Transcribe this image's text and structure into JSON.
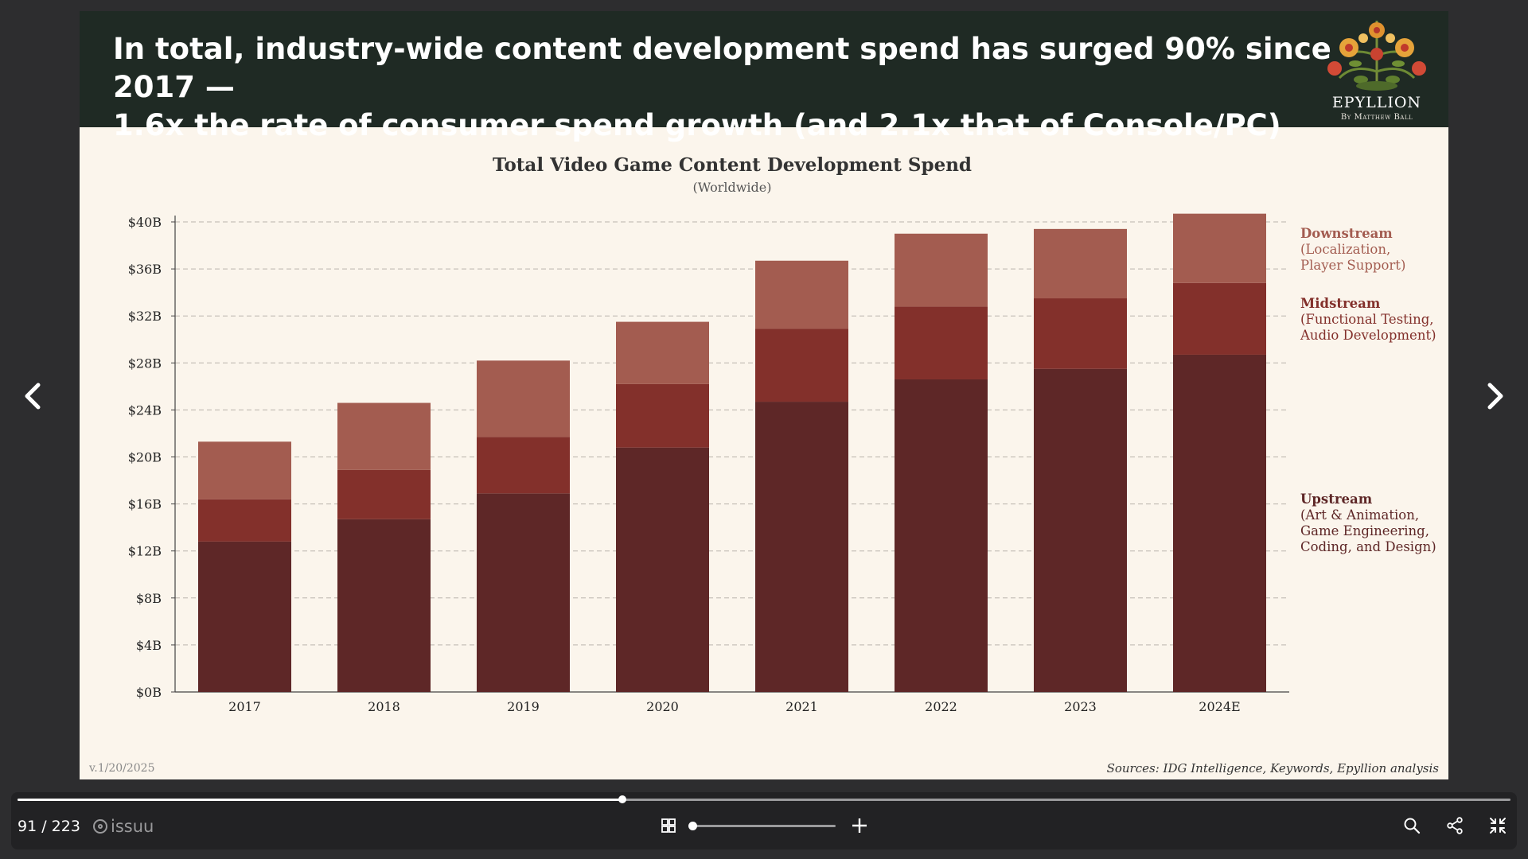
{
  "slide": {
    "headline_line1": "In total, industry-wide content development spend has surged 90% since 2017 —",
    "headline_line2": "1.6x the rate of consumer spend growth (and 2.1x that of Console/PC)",
    "logo_text": "EPYLLION",
    "logo_sub": "By Matthew Ball",
    "version": "v.1/20/2025",
    "sources": "Sources: IDG Intelligence, Keywords, Epyllion analysis"
  },
  "chart_data": {
    "type": "bar",
    "stacked": true,
    "title": "Total Video Game Content Development Spend",
    "subtitle": "(Worldwide)",
    "categories": [
      "2017",
      "2018",
      "2019",
      "2020",
      "2021",
      "2022",
      "2023",
      "2024E"
    ],
    "y_tick_labels": [
      "$0B",
      "$4B",
      "$8B",
      "$12B",
      "$16B",
      "$20B",
      "$24B",
      "$28B",
      "$32B",
      "$36B",
      "$40B"
    ],
    "ylim": [
      0,
      40
    ],
    "y_unit": "$B",
    "grid": true,
    "legend_position": "right",
    "series": [
      {
        "name": "Upstream",
        "description": "(Art & Animation,\nGame Engineering,\nCoding, and Design)",
        "color": "#5e2727",
        "values": [
          12.8,
          14.7,
          16.9,
          20.8,
          24.7,
          26.6,
          27.5,
          28.7
        ]
      },
      {
        "name": "Midstream",
        "description": "(Functional Testing,\nAudio Development)",
        "color": "#83302b",
        "values": [
          3.6,
          4.2,
          4.8,
          5.4,
          6.2,
          6.2,
          6.0,
          6.1
        ]
      },
      {
        "name": "Downstream",
        "description": "(Localization,\nPlayer Support)",
        "color": "#a35c50",
        "values": [
          4.9,
          5.7,
          6.5,
          5.3,
          5.8,
          6.2,
          5.9,
          5.9
        ]
      }
    ]
  },
  "viewer": {
    "page_counter": "91 / 223",
    "brand": "issuu",
    "progress_fraction": 0.405,
    "zoom_fraction": 0.0
  },
  "colors": {
    "header_bg": "#1f2a24",
    "slide_bg": "#fbf5ec",
    "viewer_bg": "#2d2d2f"
  }
}
